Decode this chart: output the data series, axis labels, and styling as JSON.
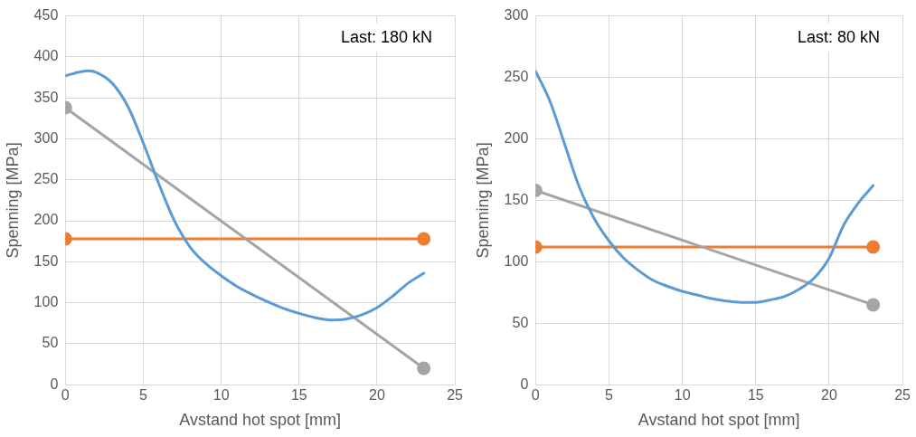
{
  "chart_data": [
    {
      "type": "line",
      "xlabel": "Avstand hot spot [mm]",
      "ylabel": "Spenning [MPa]",
      "annotations": [
        "Last: 180 kN"
      ],
      "xlim": [
        0,
        25
      ],
      "xticks": [
        0,
        5,
        10,
        15,
        20,
        25
      ],
      "ylim": [
        0,
        450
      ],
      "yticks": [
        0,
        50,
        100,
        150,
        200,
        250,
        300,
        350,
        400,
        450
      ],
      "grid": true,
      "legend": false,
      "line_style": "solid",
      "series": [
        {
          "color": "#5b9bd5",
          "marker": "none",
          "x": [
            0,
            1,
            1.5,
            2,
            3,
            4,
            5,
            6,
            7,
            8,
            9,
            10,
            11,
            12,
            13,
            14,
            15,
            16,
            17,
            18,
            19,
            20,
            21,
            22,
            23
          ],
          "values": [
            377,
            382,
            383,
            381,
            368,
            340,
            295,
            245,
            200,
            168,
            148,
            133,
            120,
            110,
            101,
            93,
            87,
            82,
            79,
            80,
            85,
            94,
            108,
            124,
            136
          ]
        },
        {
          "color": "#a5a5a5",
          "marker": "circle",
          "x": [
            0,
            23
          ],
          "values": [
            338,
            20
          ]
        },
        {
          "color": "#ed7d31",
          "marker": "circle",
          "x": [
            0,
            23
          ],
          "values": [
            178,
            178
          ]
        }
      ]
    },
    {
      "type": "line",
      "xlabel": "Avstand hot spot [mm]",
      "ylabel": "Spenning [MPa]",
      "annotations": [
        "Last: 80 kN"
      ],
      "xlim": [
        0,
        25
      ],
      "xticks": [
        0,
        5,
        10,
        15,
        20,
        25
      ],
      "ylim": [
        0,
        300
      ],
      "yticks": [
        0,
        50,
        100,
        150,
        200,
        250,
        300
      ],
      "grid": true,
      "legend": false,
      "line_style": "solid",
      "series": [
        {
          "color": "#5b9bd5",
          "marker": "none",
          "x": [
            0,
            1,
            2,
            3,
            4,
            5,
            6,
            7,
            8,
            9,
            10,
            11,
            12,
            13,
            14,
            15,
            16,
            17,
            18,
            19,
            20,
            21,
            22,
            23
          ],
          "values": [
            255,
            230,
            195,
            160,
            135,
            117,
            103,
            93,
            85,
            80,
            76,
            73,
            70,
            68,
            67,
            67,
            69,
            72,
            78,
            87,
            103,
            130,
            148,
            162
          ]
        },
        {
          "color": "#a5a5a5",
          "marker": "circle",
          "x": [
            0,
            23
          ],
          "values": [
            158,
            65
          ]
        },
        {
          "color": "#ed7d31",
          "marker": "circle",
          "x": [
            0,
            23
          ],
          "values": [
            112,
            112
          ]
        }
      ]
    }
  ]
}
